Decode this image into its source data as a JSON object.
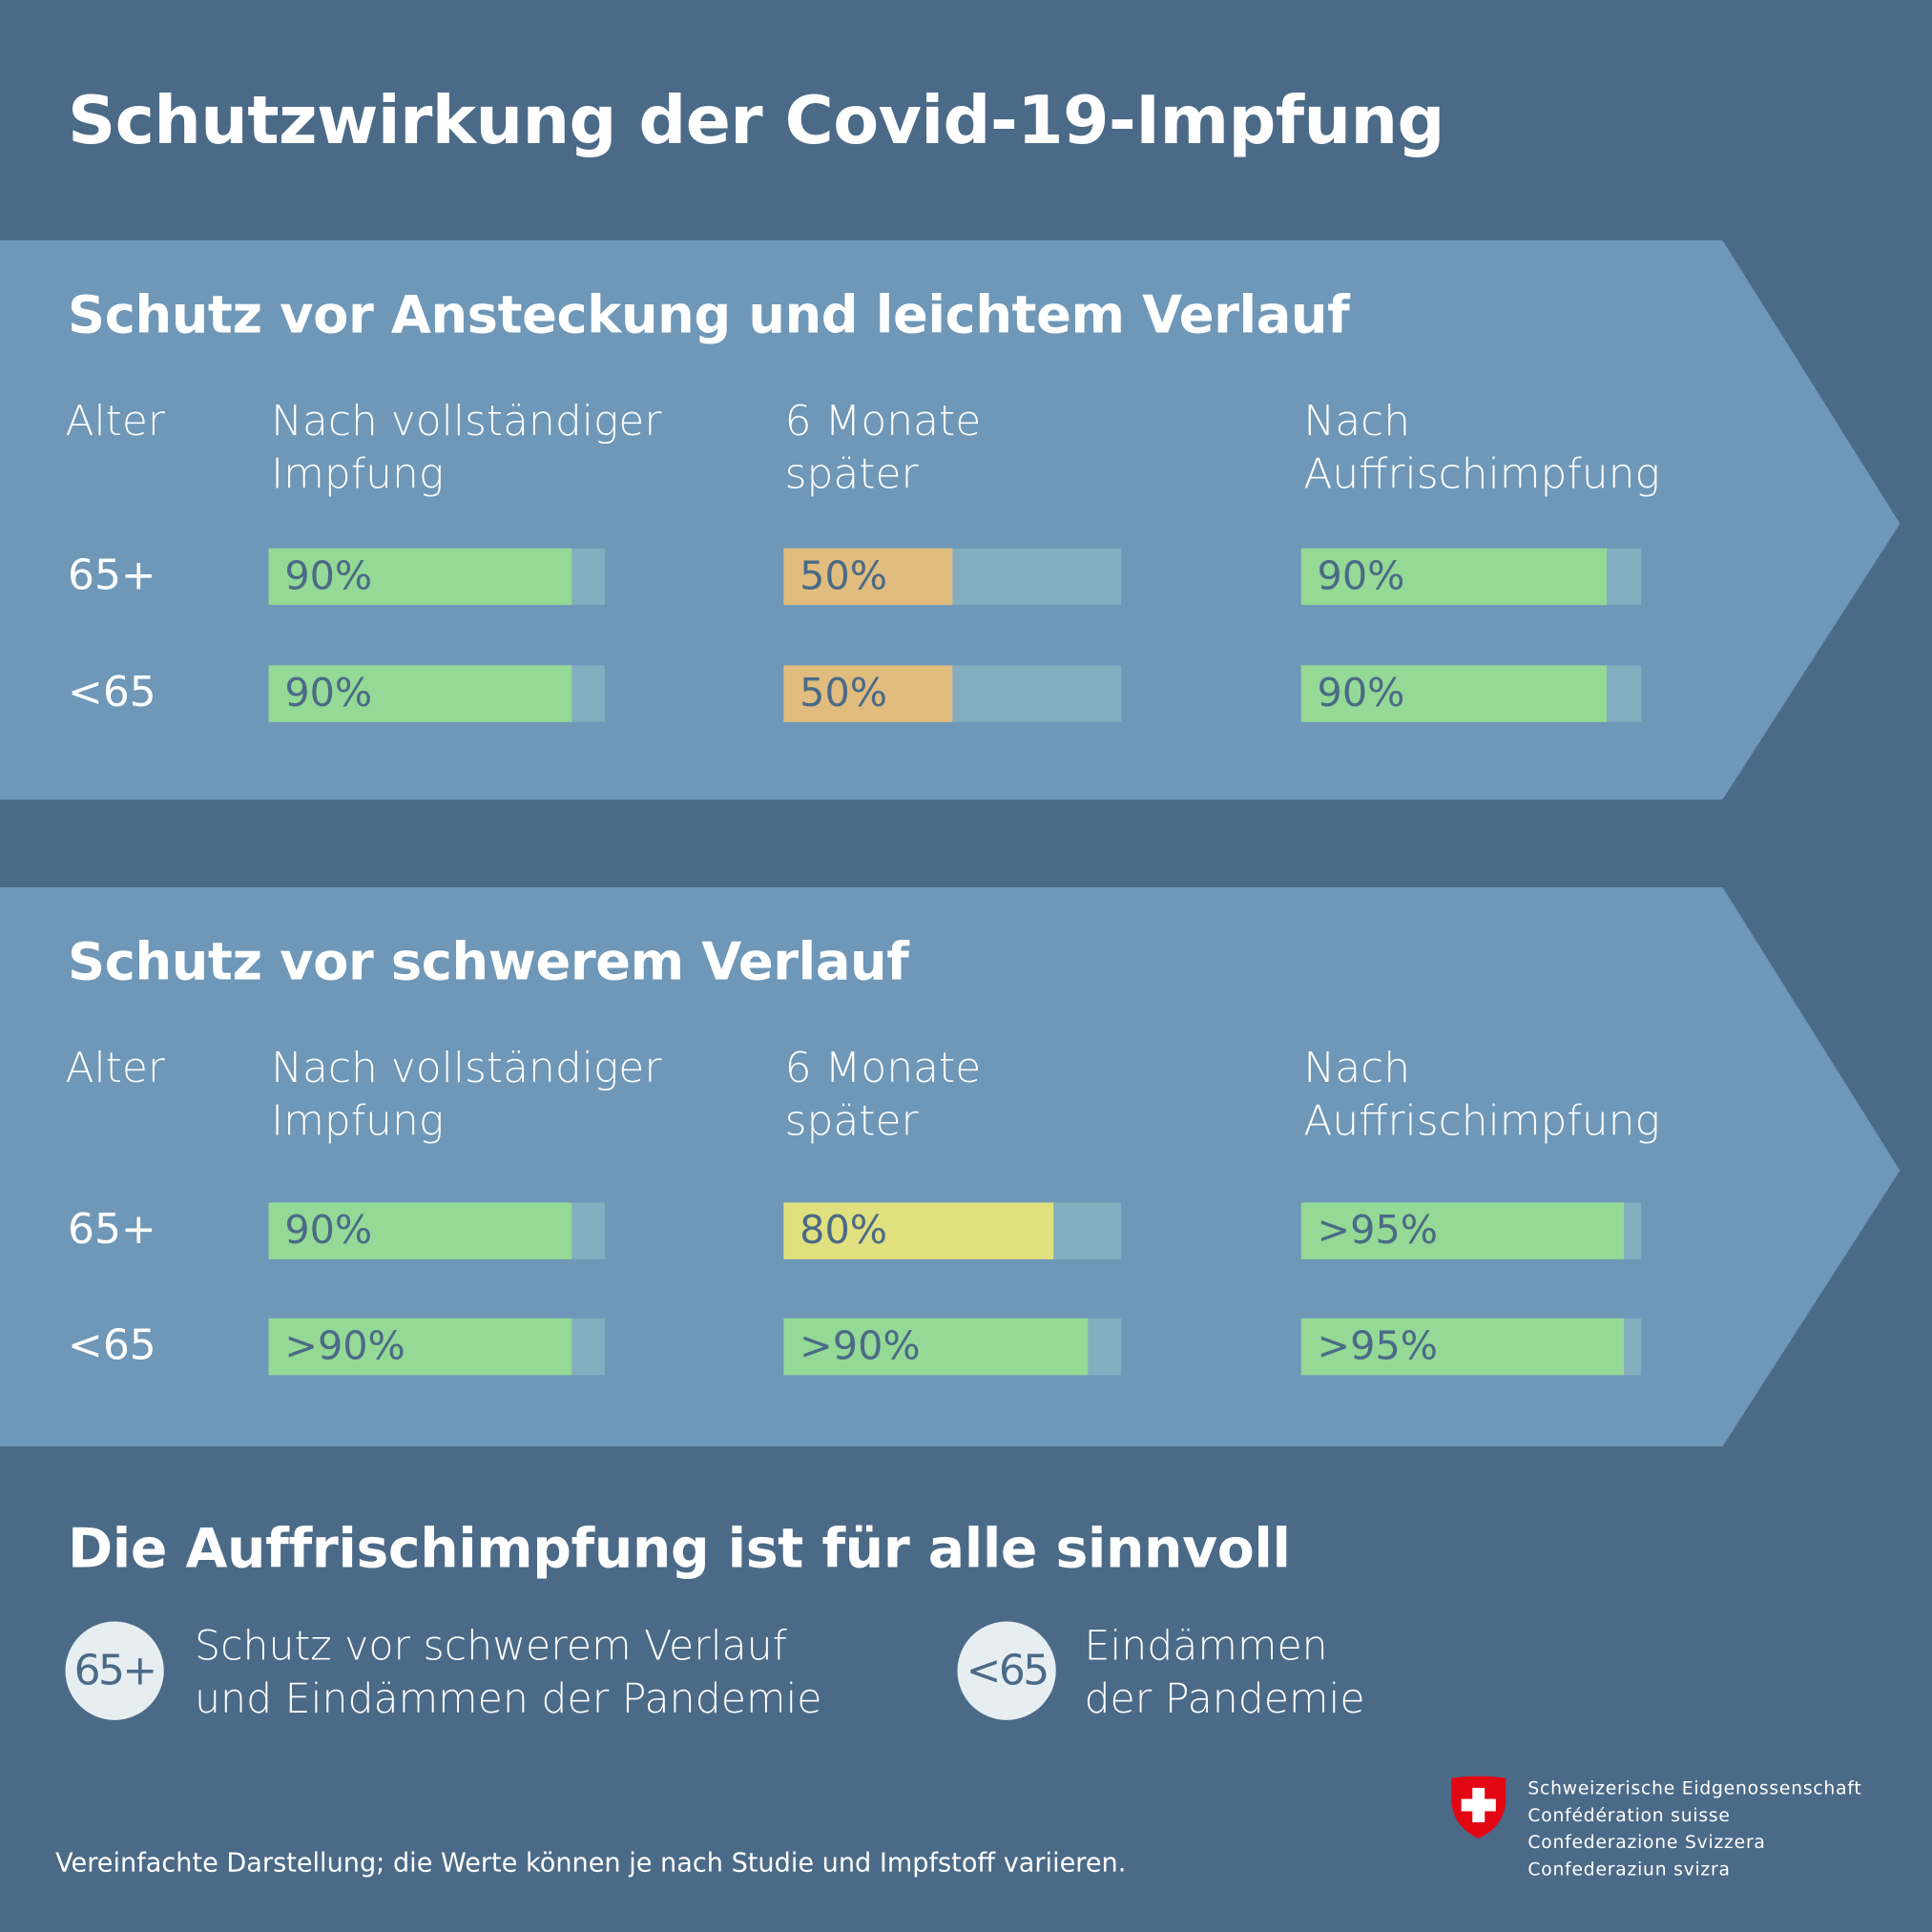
{
  "title": "Schutzwirkung der Covid-19-Impfung",
  "colors": {
    "background": "#4b6a87",
    "band": "#6f97b7",
    "track": "#84adbf",
    "green": "#94d995",
    "orange": "#e0bc7e",
    "yellow": "#e0e07e",
    "value_text": "#4b6a87",
    "shield_red": "#e30613"
  },
  "sections": [
    {
      "heading": "Schutz vor Ansteckung und leichtem Verlauf",
      "age_header": "Alter",
      "columns": [
        "Nach vollständiger\nImpfung",
        "6 Monate\nspäter",
        "Nach\nAuffrischimpfung"
      ],
      "rows": [
        {
          "age": "65+",
          "cells": [
            {
              "label": "90%",
              "value": 90,
              "color": "green"
            },
            {
              "label": "50%",
              "value": 50,
              "color": "orange"
            },
            {
              "label": "90%",
              "value": 90,
              "color": "green"
            }
          ]
        },
        {
          "age": "<65",
          "cells": [
            {
              "label": "90%",
              "value": 90,
              "color": "green"
            },
            {
              "label": "50%",
              "value": 50,
              "color": "orange"
            },
            {
              "label": "90%",
              "value": 90,
              "color": "green"
            }
          ]
        }
      ]
    },
    {
      "heading": "Schutz vor schwerem Verlauf",
      "age_header": "Alter",
      "columns": [
        "Nach vollständiger\nImpfung",
        "6 Monate\nspäter",
        "Nach\nAuffrischimpfung"
      ],
      "rows": [
        {
          "age": "65+",
          "cells": [
            {
              "label": "90%",
              "value": 90,
              "color": "green"
            },
            {
              "label": "80%",
              "value": 80,
              "color": "yellow"
            },
            {
              "label": ">95%",
              "value": 95,
              "color": "green"
            }
          ]
        },
        {
          "age": "<65",
          "cells": [
            {
              "label": ">90%",
              "value": 90,
              "color": "green"
            },
            {
              "label": ">90%",
              "value": 90,
              "color": "green"
            },
            {
              "label": ">95%",
              "value": 95,
              "color": "green"
            }
          ]
        }
      ]
    }
  ],
  "booster": {
    "heading": "Die Auffrischimpfung ist für alle sinnvoll",
    "items": [
      {
        "badge": "65+",
        "text": "Schutz vor schwerem Verlauf\nund Eindämmen der Pandemie"
      },
      {
        "badge": "<65",
        "text": "Eindämmen\nder Pandemie"
      }
    ]
  },
  "logo": {
    "icon": "swiss-shield-icon",
    "lines": [
      "Schweizerische Eidgenossenschaft",
      "Confédération suisse",
      "Confederazione Svizzera",
      "Confederaziun svizra"
    ]
  },
  "footnote": "Vereinfachte Darstellung; die Werte können je nach Studie und Impfstoff variieren."
}
